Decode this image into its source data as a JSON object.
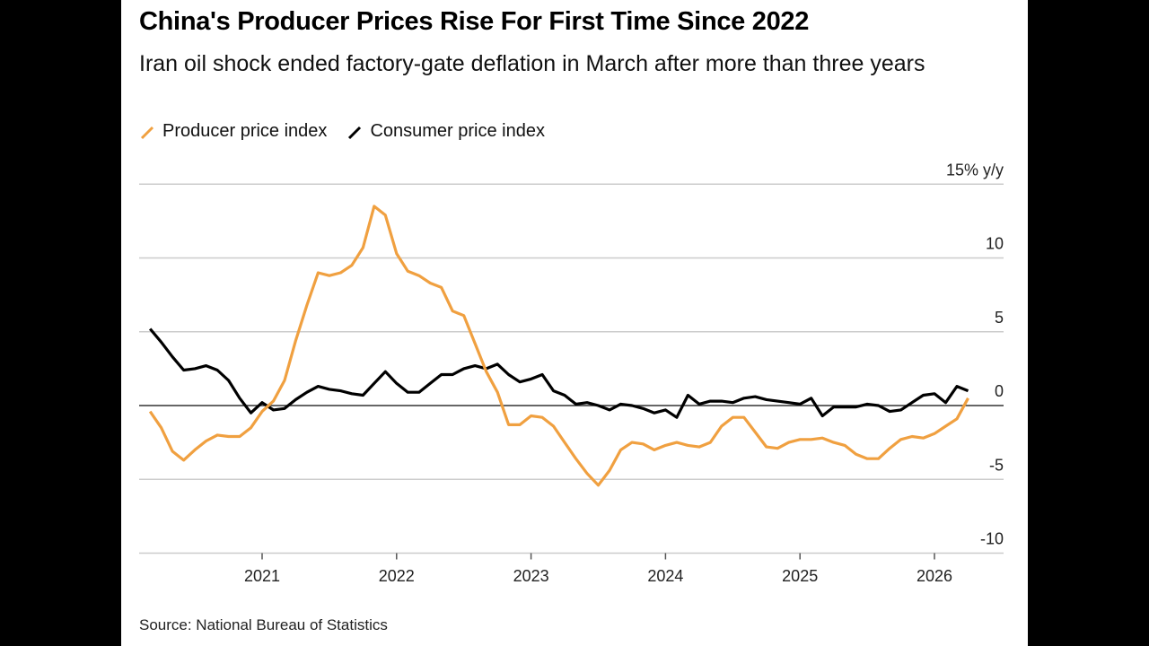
{
  "title": "China's Producer Prices Rise For First Time Since 2022",
  "subtitle": "Iran oil shock ended factory-gate deflation in March after more than three years",
  "source": "Source: National Bureau of Statistics",
  "chart_data": {
    "type": "line",
    "title": "China's Producer Prices Rise For First Time Since 2022",
    "ylabel": "",
    "y_unit_label": "15% y/y",
    "ylim": [
      -10,
      15
    ],
    "yticks": [
      15,
      10,
      5,
      0,
      -5,
      -10
    ],
    "ytick_labels": [
      "15% y/y",
      "10",
      "5",
      "0",
      "-5",
      "-10"
    ],
    "xticks": [
      "2021",
      "2022",
      "2023",
      "2024",
      "2025",
      "2026"
    ],
    "grid": true,
    "legend_position": "top-left",
    "x": [
      "2020-02",
      "2020-03",
      "2020-04",
      "2020-05",
      "2020-06",
      "2020-07",
      "2020-08",
      "2020-09",
      "2020-10",
      "2020-11",
      "2020-12",
      "2021-01",
      "2021-02",
      "2021-03",
      "2021-04",
      "2021-05",
      "2021-06",
      "2021-07",
      "2021-08",
      "2021-09",
      "2021-10",
      "2021-11",
      "2021-12",
      "2022-01",
      "2022-02",
      "2022-03",
      "2022-04",
      "2022-05",
      "2022-06",
      "2022-07",
      "2022-08",
      "2022-09",
      "2022-10",
      "2022-11",
      "2022-12",
      "2023-01",
      "2023-02",
      "2023-03",
      "2023-04",
      "2023-05",
      "2023-06",
      "2023-07",
      "2023-08",
      "2023-09",
      "2023-10",
      "2023-11",
      "2023-12",
      "2024-01",
      "2024-02",
      "2024-03",
      "2024-04",
      "2024-05",
      "2024-06",
      "2024-07",
      "2024-08",
      "2024-09",
      "2024-10",
      "2024-11",
      "2024-12",
      "2025-01",
      "2025-02",
      "2025-03",
      "2025-04",
      "2025-05",
      "2025-06",
      "2025-07",
      "2025-08",
      "2025-09",
      "2025-10",
      "2025-11",
      "2025-12",
      "2026-01",
      "2026-02",
      "2026-03"
    ],
    "series": [
      {
        "name": "Producer price index",
        "color": "#f0a040",
        "values": [
          -0.4,
          -1.5,
          -3.1,
          -3.7,
          -3.0,
          -2.4,
          -2.0,
          -2.1,
          -2.1,
          -1.5,
          -0.4,
          0.3,
          1.7,
          4.4,
          6.8,
          9.0,
          8.8,
          9.0,
          9.5,
          10.7,
          13.5,
          12.9,
          10.3,
          9.1,
          8.8,
          8.3,
          8.0,
          6.4,
          6.1,
          4.2,
          2.3,
          0.9,
          -1.3,
          -1.3,
          -0.7,
          -0.8,
          -1.4,
          -2.5,
          -3.6,
          -4.6,
          -5.4,
          -4.4,
          -3.0,
          -2.5,
          -2.6,
          -3.0,
          -2.7,
          -2.5,
          -2.7,
          -2.8,
          -2.5,
          -1.4,
          -0.8,
          -0.8,
          -1.8,
          -2.8,
          -2.9,
          -2.5,
          -2.3,
          -2.3,
          -2.2,
          -2.5,
          -2.7,
          -3.3,
          -3.6,
          -3.6,
          -2.9,
          -2.3,
          -2.1,
          -2.2,
          -1.9,
          -1.4,
          -0.9,
          0.5
        ]
      },
      {
        "name": "Consumer price index",
        "color": "#000000",
        "values": [
          5.2,
          4.3,
          3.3,
          2.4,
          2.5,
          2.7,
          2.4,
          1.7,
          0.5,
          -0.5,
          0.2,
          -0.3,
          -0.2,
          0.4,
          0.9,
          1.3,
          1.1,
          1.0,
          0.8,
          0.7,
          1.5,
          2.3,
          1.5,
          0.9,
          0.9,
          1.5,
          2.1,
          2.1,
          2.5,
          2.7,
          2.5,
          2.8,
          2.1,
          1.6,
          1.8,
          2.1,
          1.0,
          0.7,
          0.1,
          0.2,
          0.0,
          -0.3,
          0.1,
          0.0,
          -0.2,
          -0.5,
          -0.3,
          -0.8,
          0.7,
          0.1,
          0.3,
          0.3,
          0.2,
          0.5,
          0.6,
          0.4,
          0.3,
          0.2,
          0.1,
          0.5,
          -0.7,
          -0.1,
          -0.1,
          -0.1,
          0.1,
          0.0,
          -0.4,
          -0.3,
          0.2,
          0.7,
          0.8,
          0.2,
          1.3,
          1.0
        ]
      }
    ]
  }
}
